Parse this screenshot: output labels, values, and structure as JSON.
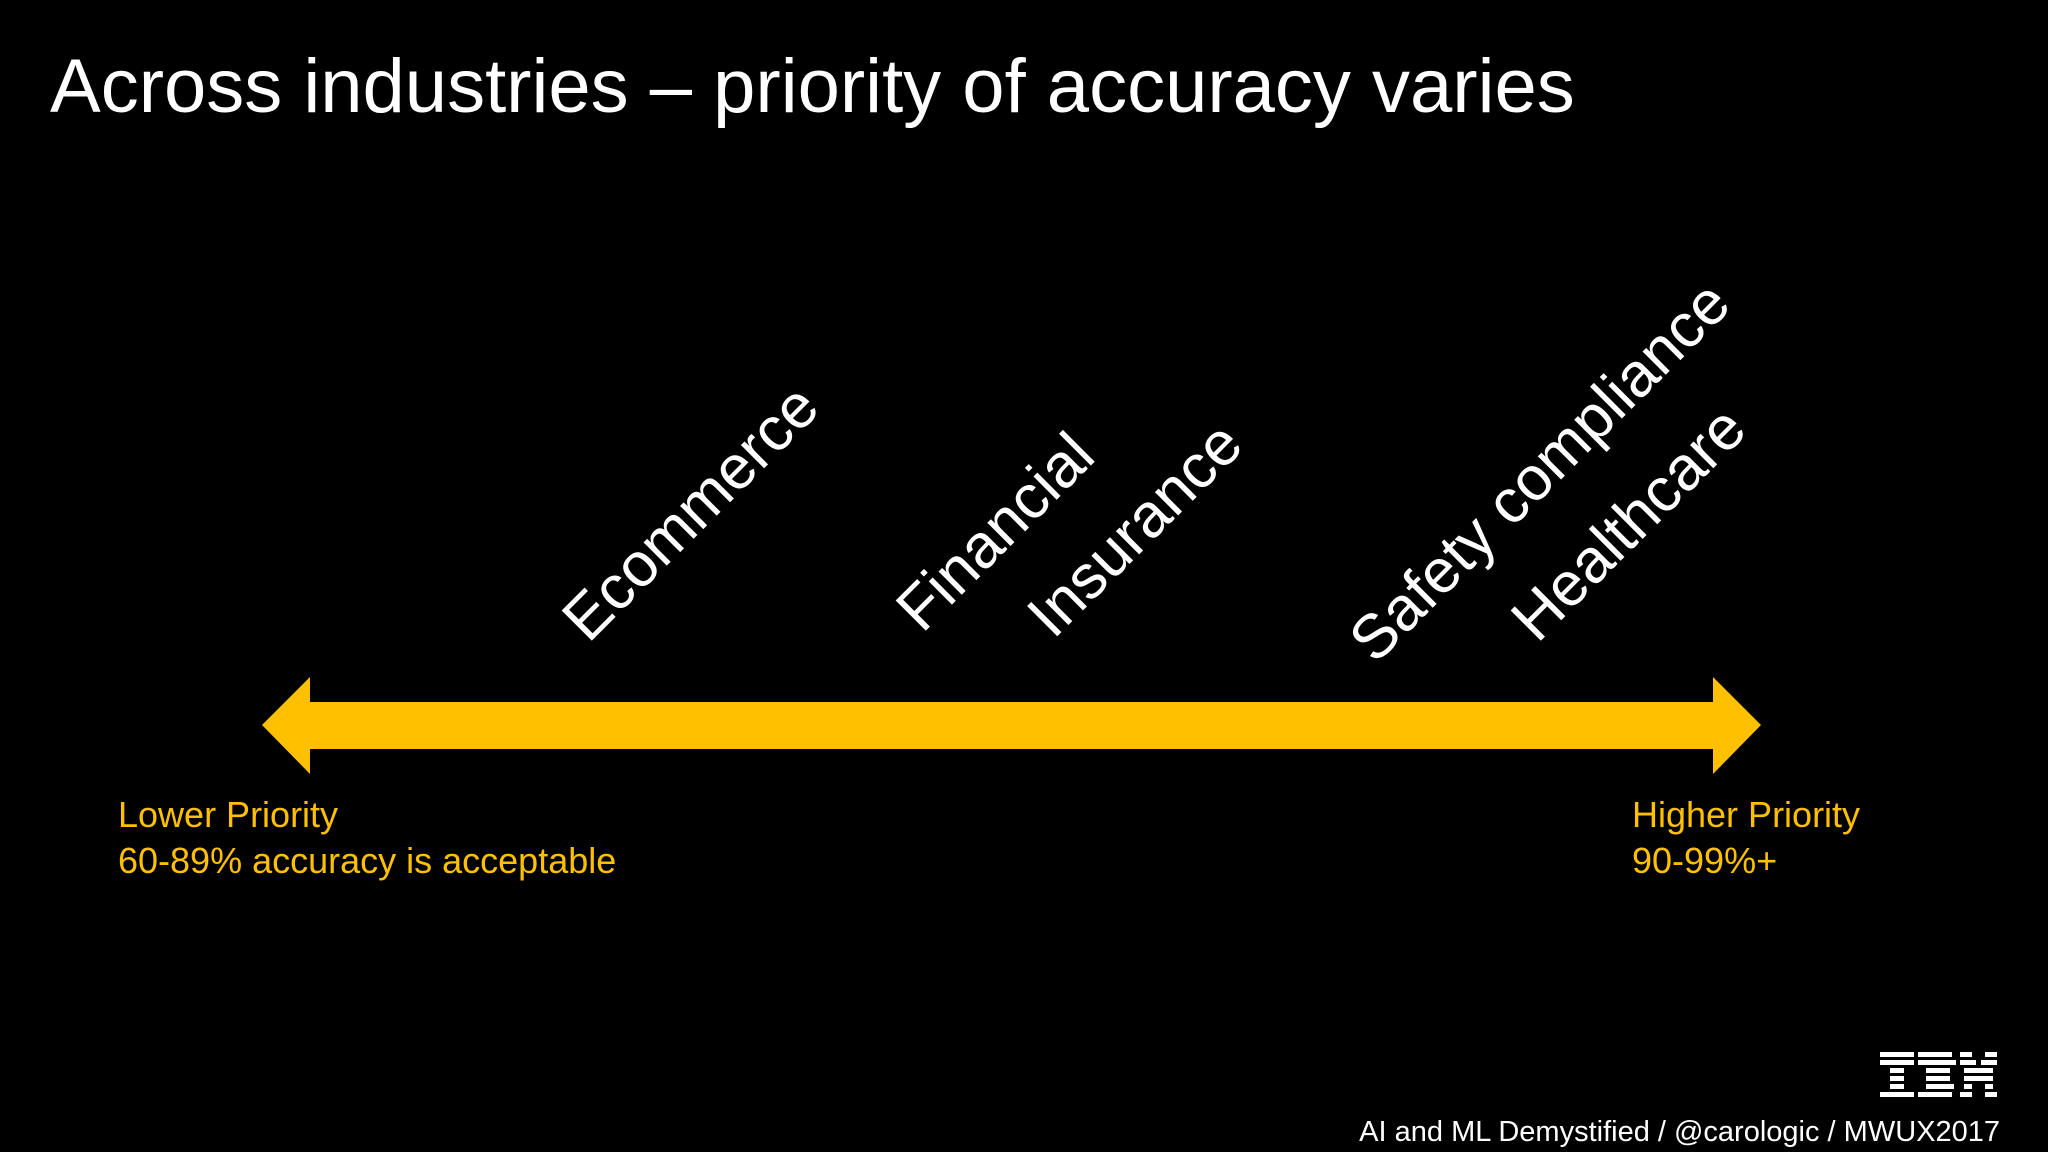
{
  "title": "Across industries – priority of accuracy varies",
  "industries": [
    "Ecommerce",
    "Financial",
    "Insurance",
    "Safety compliance",
    "Healthcare"
  ],
  "scale": {
    "low": {
      "label": "Lower Priority",
      "detail": "60-89% accuracy is acceptable"
    },
    "high": {
      "label": "Higher Priority",
      "detail": "90-99%+"
    }
  },
  "colors": {
    "background": "#000000",
    "text": "#ffffff",
    "accent": "#ffc000"
  },
  "logo": {
    "text": "IBM"
  },
  "footer": "AI and ML Demystified  /  @carologic  /  MWUX2017"
}
